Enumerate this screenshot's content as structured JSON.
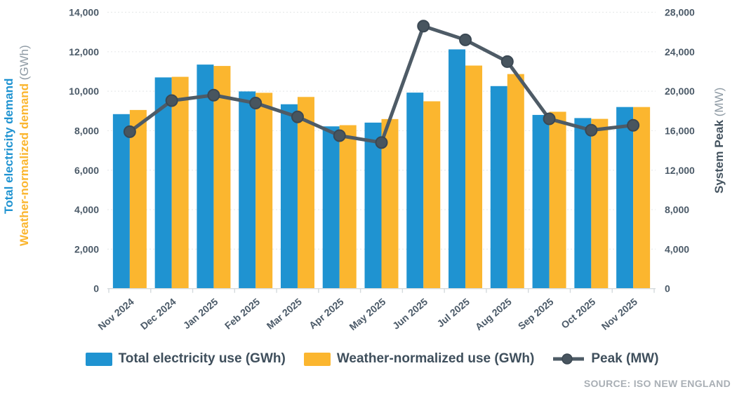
{
  "colors": {
    "bar_total": "#1f93d1",
    "bar_normalized": "#fbb62f",
    "peak_line": "#4e5b66",
    "peak_dot": "#48555f",
    "peak_dot_ring": "#3b4853",
    "grid": "#e8eaeb",
    "axis": "#d4dadd",
    "tick_text": "#4b5a68",
    "legend_text": "#3f4f5c",
    "source_text": "#a9afb5",
    "unit_text": "#8d99a3"
  },
  "chart_data": {
    "type": "combo-bar-line",
    "categories": [
      "Nov 2024",
      "Dec 2024",
      "Jan 2025",
      "Feb 2025",
      "Mar 2025",
      "Apr 2025",
      "May 2025",
      "Jun 2025",
      "Jul 2025",
      "Aug 2025",
      "Sep 2025",
      "Oct 2025",
      "Nov 2025"
    ],
    "series": [
      {
        "name": "Total electricity use (GWh)",
        "type": "bar",
        "axis": "left",
        "values": [
          8840,
          10700,
          11350,
          9990,
          9340,
          8220,
          8410,
          9930,
          12120,
          10260,
          8800,
          8640,
          9200
        ]
      },
      {
        "name": "Weather-normalized use (GWh)",
        "type": "bar",
        "axis": "left",
        "values": [
          9050,
          10730,
          11280,
          9920,
          9710,
          8280,
          8590,
          9490,
          11300,
          10870,
          8960,
          8600,
          9200
        ]
      },
      {
        "name": "Peak (MW)",
        "type": "line",
        "axis": "right",
        "values": [
          15900,
          19050,
          19600,
          18800,
          17400,
          15500,
          14800,
          26600,
          25200,
          23000,
          17200,
          16050,
          16550
        ]
      }
    ],
    "left_axis": {
      "title_total": "Total electricity demand",
      "title_normalized": "Weather-normalized demand",
      "unit": " (GWh)",
      "min": 0,
      "max": 14000,
      "step": 2000,
      "tick_labels": [
        "0",
        "2,000",
        "4,000",
        "6,000",
        "8,000",
        "10,000",
        "12,000",
        "14,000"
      ]
    },
    "right_axis": {
      "title": "System Peak",
      "unit": " (MW)",
      "min": 0,
      "max": 28000,
      "step": 4000,
      "tick_labels": [
        "0",
        "4,000",
        "8,000",
        "12,000",
        "16,000",
        "20,000",
        "24,000",
        "28,000"
      ]
    },
    "grid": true,
    "legend_position": "bottom",
    "source": "SOURCE: ISO NEW ENGLAND"
  }
}
